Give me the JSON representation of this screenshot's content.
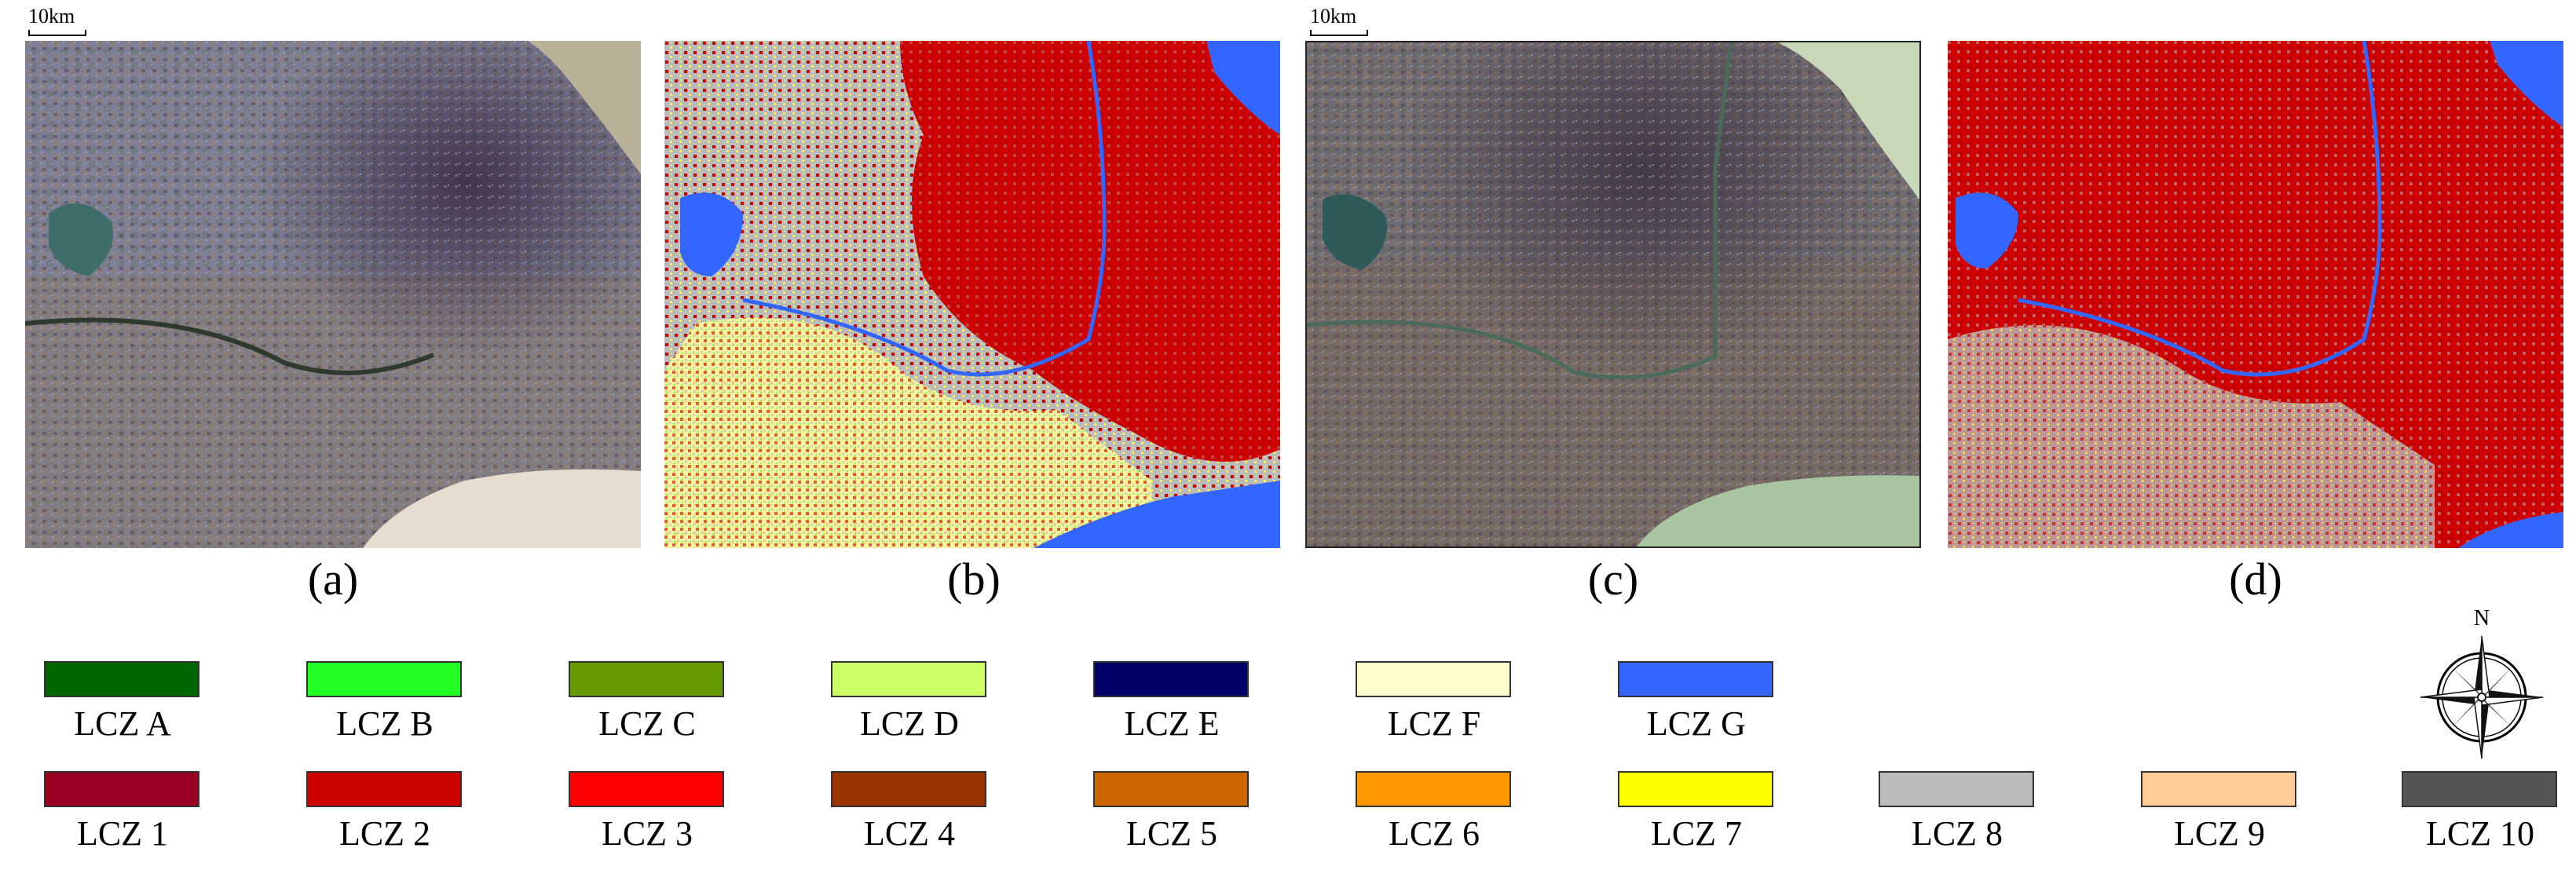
{
  "scale_bar_label": "10km",
  "panels": [
    {
      "label": "(a)",
      "kind": "satellite image"
    },
    {
      "label": "(b)",
      "kind": "LCZ classification map"
    },
    {
      "label": "(c)",
      "kind": "satellite image"
    },
    {
      "label": "(d)",
      "kind": "LCZ classification map"
    }
  ],
  "north_label": "N",
  "legend": {
    "row1": [
      {
        "label": "LCZ A",
        "color": "#006600"
      },
      {
        "label": "LCZ B",
        "color": "#22ff22"
      },
      {
        "label": "LCZ C",
        "color": "#669a00"
      },
      {
        "label": "LCZ D",
        "color": "#ccff66"
      },
      {
        "label": "LCZ E",
        "color": "#000066"
      },
      {
        "label": "LCZ F",
        "color": "#ffffcc"
      },
      {
        "label": "LCZ G",
        "color": "#3366ff"
      }
    ],
    "row2": [
      {
        "label": "LCZ 1",
        "color": "#990022"
      },
      {
        "label": "LCZ 2",
        "color": "#cc0000"
      },
      {
        "label": "LCZ 3",
        "color": "#ff0000"
      },
      {
        "label": "LCZ 4",
        "color": "#993300"
      },
      {
        "label": "LCZ 5",
        "color": "#cc6600"
      },
      {
        "label": "LCZ 6",
        "color": "#ff9900"
      },
      {
        "label": "LCZ 7",
        "color": "#ffff00"
      },
      {
        "label": "LCZ 8",
        "color": "#bbbbbb"
      },
      {
        "label": "LCZ 9",
        "color": "#ffcc99"
      },
      {
        "label": "LCZ 10",
        "color": "#555555"
      }
    ]
  }
}
